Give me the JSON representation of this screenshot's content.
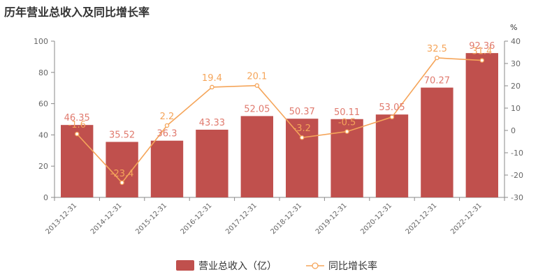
{
  "title": "历年营业总收入及同比增长率",
  "colors": {
    "bar": "#c0504d",
    "line": "#f5a55a",
    "bar_label": "#e07a6e",
    "line_label": "#f5a55a"
  },
  "chart_data": {
    "type": "bar",
    "title": "历年营业总收入及同比增长率",
    "categories": [
      "2013-12-31",
      "2014-12-31",
      "2015-12-31",
      "2016-12-31",
      "2017-12-31",
      "2018-12-31",
      "2019-12-31",
      "2020-12-31",
      "2021-12-31",
      "2022-12-31"
    ],
    "series": [
      {
        "name": "营业总收入（亿）",
        "type": "bar",
        "axis": "left",
        "values": [
          46.35,
          35.52,
          36.3,
          43.33,
          52.05,
          50.37,
          50.11,
          53.05,
          70.27,
          92.36
        ],
        "labels": [
          "46.35",
          "35.52",
          "36.3",
          "43.33",
          "52.05",
          "50.37",
          "50.11",
          "53.05",
          "70.27",
          "92.36"
        ]
      },
      {
        "name": "同比增长率",
        "type": "line",
        "axis": "right",
        "values": [
          -1.6,
          -23.4,
          2.2,
          19.4,
          20.1,
          -3.2,
          -0.5,
          6,
          32.5,
          31.4
        ],
        "labels": [
          "-1.6",
          "-23.4",
          "2.2",
          "19.4",
          "20.1",
          "-3.2",
          "-0.5",
          "",
          "32.5",
          "31.4"
        ]
      }
    ],
    "y_left": {
      "min": 0,
      "max": 100,
      "ticks": [
        0,
        20,
        40,
        60,
        80,
        100
      ]
    },
    "y_right": {
      "min": -30,
      "max": 40,
      "ticks": [
        -30,
        -20,
        -10,
        0,
        10,
        20,
        30,
        40
      ],
      "unit": "%"
    },
    "legend": {
      "position": "bottom-center",
      "bar_label": "营业总收入（亿）",
      "line_label": "同比增长率"
    },
    "grid": false
  }
}
